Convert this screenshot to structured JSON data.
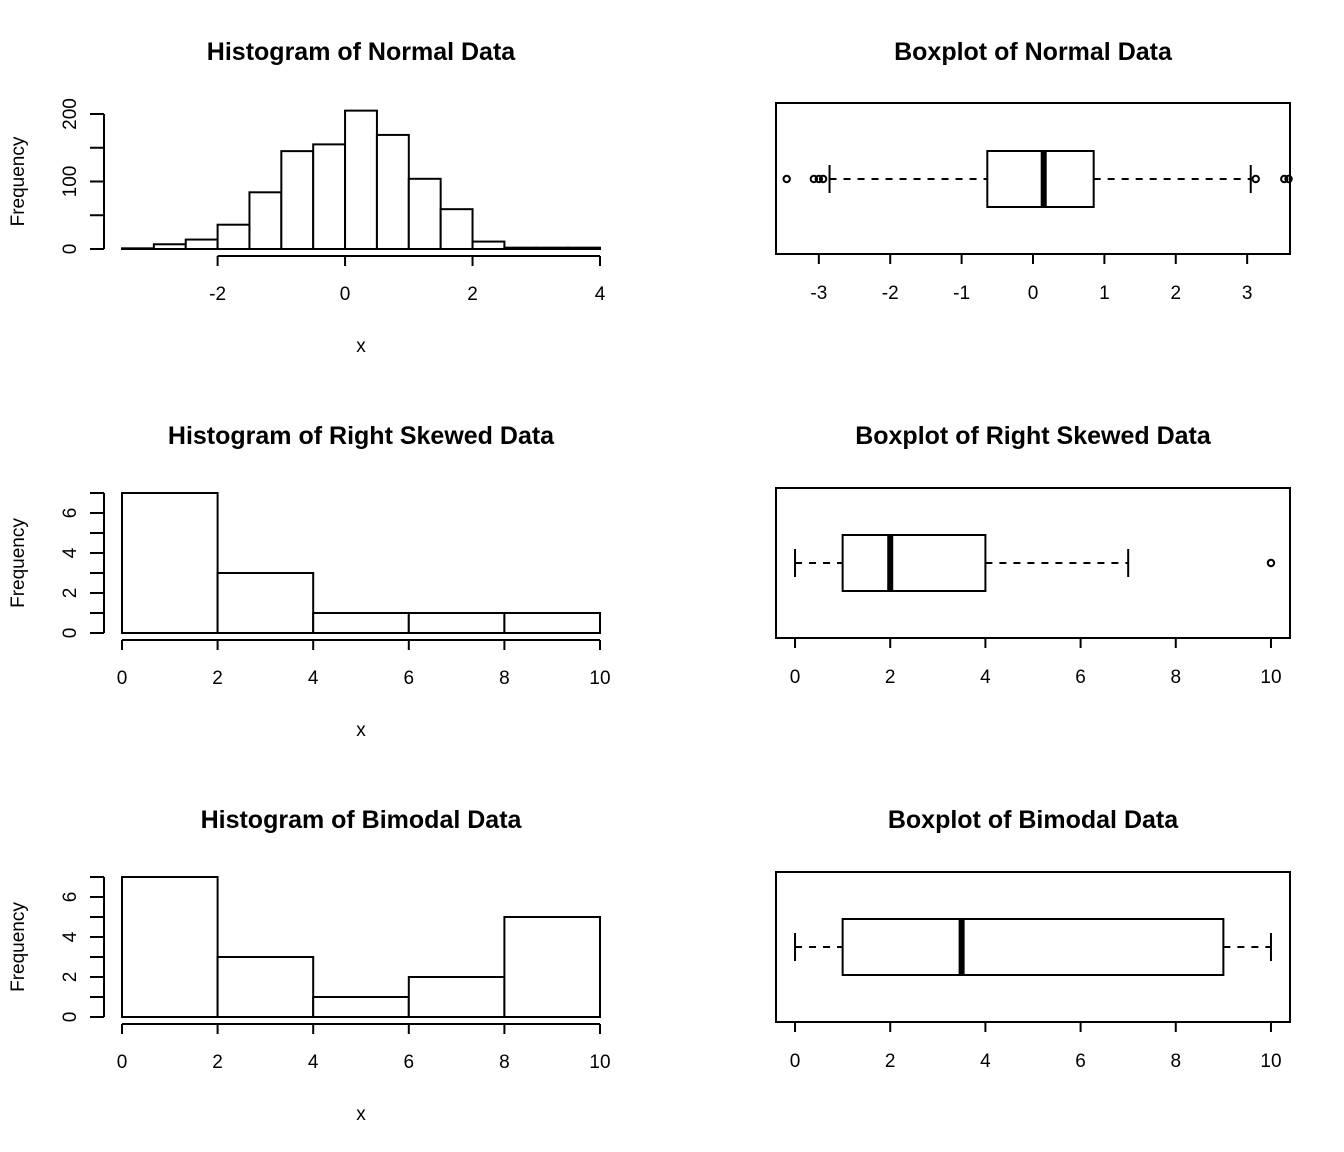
{
  "chart_data": [
    {
      "type": "histogram",
      "title": "Histogram of Normal Data",
      "xlabel": "x",
      "ylabel": "Frequency",
      "bin_edges": [
        -3.5,
        -3,
        -2.5,
        -2,
        -1.5,
        -1,
        -0.5,
        0,
        0.5,
        1,
        1.5,
        2,
        2.5,
        3,
        3.5,
        4
      ],
      "counts": [
        1,
        7,
        14,
        36,
        84,
        145,
        155,
        205,
        169,
        104,
        59,
        11,
        2,
        2,
        2
      ],
      "xlim": [
        -3.5,
        4
      ],
      "ylim": [
        0,
        200
      ],
      "x_ticks": [
        -2,
        0,
        2,
        4
      ],
      "y_ticks": [
        0,
        100,
        200
      ],
      "y_minor_ticks": [
        50,
        150
      ]
    },
    {
      "type": "boxplot",
      "title": "Boxplot of Normal Data",
      "orientation": "horizontal",
      "xlim": [
        -3.6,
        3.6
      ],
      "x_ticks": [
        -3,
        -2,
        -1,
        0,
        1,
        2,
        3
      ],
      "stats": {
        "whisker_low": -2.85,
        "q1": -0.64,
        "median": 0.15,
        "q3": 0.85,
        "whisker_high": 3.05
      },
      "outliers": [
        -3.45,
        -3.07,
        -3.0,
        -2.94,
        3.12,
        3.52,
        3.58
      ]
    },
    {
      "type": "histogram",
      "title": "Histogram of Right Skewed Data",
      "xlabel": "x",
      "ylabel": "Frequency",
      "bin_edges": [
        0,
        2,
        4,
        6,
        8,
        10
      ],
      "counts": [
        7,
        3,
        1,
        1,
        1
      ],
      "xlim": [
        0,
        10
      ],
      "ylim": [
        0,
        7
      ],
      "x_ticks": [
        0,
        2,
        4,
        6,
        8,
        10
      ],
      "y_ticks": [
        0,
        2,
        4,
        6
      ],
      "y_minor_ticks": [
        1,
        3,
        5,
        7
      ]
    },
    {
      "type": "boxplot",
      "title": "Boxplot of Right Skewed Data",
      "orientation": "horizontal",
      "xlim": [
        -0.4,
        10.4
      ],
      "x_ticks": [
        0,
        2,
        4,
        6,
        8,
        10
      ],
      "stats": {
        "whisker_low": 0,
        "q1": 1,
        "median": 2,
        "q3": 4,
        "whisker_high": 7
      },
      "outliers": [
        10
      ]
    },
    {
      "type": "histogram",
      "title": "Histogram of Bimodal Data",
      "xlabel": "x",
      "ylabel": "Frequency",
      "bin_edges": [
        0,
        2,
        4,
        6,
        8,
        10
      ],
      "counts": [
        7,
        3,
        1,
        2,
        5
      ],
      "xlim": [
        0,
        10
      ],
      "ylim": [
        0,
        7
      ],
      "x_ticks": [
        0,
        2,
        4,
        6,
        8,
        10
      ],
      "y_ticks": [
        0,
        2,
        4,
        6
      ],
      "y_minor_ticks": [
        1,
        3,
        5,
        7
      ]
    },
    {
      "type": "boxplot",
      "title": "Boxplot of Bimodal Data",
      "orientation": "horizontal",
      "xlim": [
        -0.4,
        10.4
      ],
      "x_ticks": [
        0,
        2,
        4,
        6,
        8,
        10
      ],
      "stats": {
        "whisker_low": 0,
        "q1": 1,
        "median": 3.5,
        "q3": 9,
        "whisker_high": 10
      },
      "outliers": []
    }
  ]
}
